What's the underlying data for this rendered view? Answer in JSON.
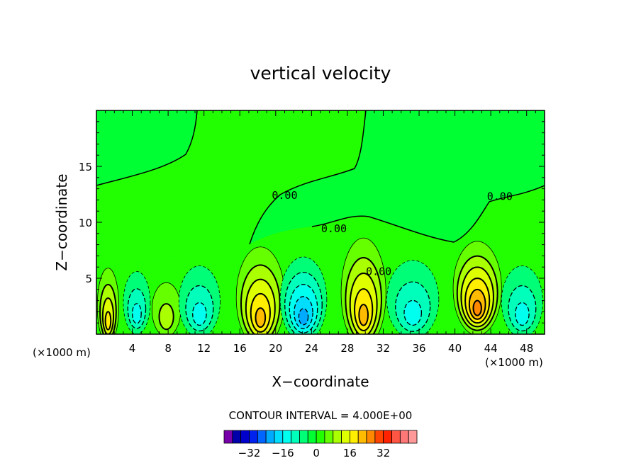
{
  "chart_data": {
    "type": "heatmap",
    "title": "vertical velocity",
    "xlabel": "X−coordinate",
    "ylabel": "Z−coordinate",
    "x_unit_left": "(×1000 m)",
    "x_unit_right": "(×1000 m)",
    "xlim": [
      0,
      50
    ],
    "ylim": [
      0,
      20
    ],
    "x_ticks": [
      4,
      8,
      12,
      16,
      20,
      24,
      28,
      32,
      36,
      40,
      44,
      48
    ],
    "y_ticks": [
      5,
      10,
      15
    ],
    "contour_interval_label": "CONTOUR INTERVAL = 4.000E+00",
    "contour_labels": [
      {
        "text": "0.00",
        "x": 21,
        "z": 12.1
      },
      {
        "text": "0.00",
        "x": 26.5,
        "z": 9.1
      },
      {
        "text": "0.00",
        "x": 31.5,
        "z": 5.3
      },
      {
        "text": "0.00",
        "x": 45,
        "z": 12
      }
    ],
    "cells": [
      {
        "x": 1.3,
        "z": 2.5,
        "rx": 1.2,
        "rz": 3.4,
        "value": 16
      },
      {
        "x": 4.5,
        "z": 2.8,
        "rx": 1.5,
        "rz": 2.8,
        "value": -12
      },
      {
        "x": 7.8,
        "z": 2.2,
        "rx": 1.6,
        "rz": 2.4,
        "value": 8
      },
      {
        "x": 11.5,
        "z": 2.9,
        "rx": 2.3,
        "rz": 3.2,
        "value": -12
      },
      {
        "x": 18.3,
        "z": 3.3,
        "rx": 2.7,
        "rz": 4.5,
        "value": 20
      },
      {
        "x": 23.1,
        "z": 3.1,
        "rx": 2.6,
        "rz": 3.8,
        "value": -20
      },
      {
        "x": 29.8,
        "z": 3.7,
        "rx": 2.5,
        "rz": 4.9,
        "value": 20
      },
      {
        "x": 35.3,
        "z": 3.1,
        "rx": 2.9,
        "rz": 3.5,
        "value": -12
      },
      {
        "x": 42.5,
        "z": 4.1,
        "rx": 2.7,
        "rz": 4.2,
        "value": 24
      },
      {
        "x": 47.5,
        "z": 2.9,
        "rx": 2.3,
        "rz": 3.2,
        "value": -12
      }
    ],
    "colorbar": {
      "colors": [
        "#7700aa",
        "#0000aa",
        "#0000cc",
        "#0022ee",
        "#0066ff",
        "#00aaff",
        "#00ddff",
        "#00ffee",
        "#00ffbb",
        "#00ff77",
        "#00ff33",
        "#22ff00",
        "#66ff00",
        "#aaff00",
        "#ddff00",
        "#ffee00",
        "#ffbb00",
        "#ff8800",
        "#ff4400",
        "#ff2200",
        "#ff5544",
        "#ff7777",
        "#ff9999"
      ],
      "tick_labels": [
        "−32",
        "−16",
        "0",
        "16",
        "32"
      ],
      "tick_values": [
        -32,
        -16,
        0,
        16,
        32
      ],
      "min": -44,
      "max": 48
    }
  }
}
